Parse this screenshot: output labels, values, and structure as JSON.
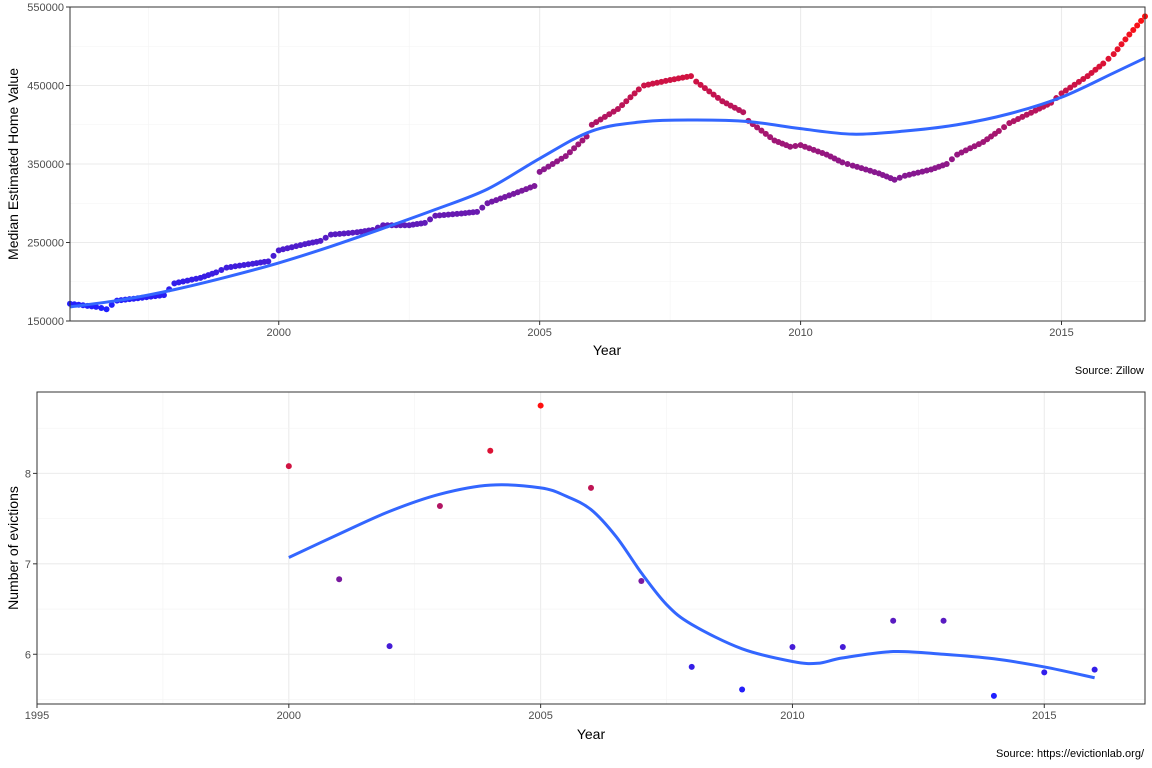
{
  "chart_data": [
    {
      "type": "scatter",
      "xlabel": "Year",
      "ylabel": "Median Estimated Home Value",
      "caption": "Source: Zillow",
      "xlim": [
        1996.0,
        2016.6
      ],
      "ylim": [
        150000,
        550000
      ],
      "x_ticks": [
        2000,
        2005,
        2010,
        2015
      ],
      "y_ticks": [
        150000,
        250000,
        350000,
        450000,
        550000
      ],
      "x_tick_labels": [
        "2000",
        "2005",
        "2010",
        "2015"
      ],
      "y_tick_labels": [
        "150000",
        "250000",
        "350000",
        "450000",
        "550000"
      ],
      "grid": true,
      "point_color_scale": {
        "low": "#1f1fff",
        "high": "#ff1010"
      },
      "points_trend": [
        [
          1996.0,
          172000
        ],
        [
          1996.5,
          168000
        ],
        [
          1996.7,
          165000
        ],
        [
          1996.9,
          176000
        ],
        [
          1997.3,
          179000
        ],
        [
          1997.8,
          183000
        ],
        [
          1998.0,
          198000
        ],
        [
          1998.5,
          205000
        ],
        [
          1998.8,
          212000
        ],
        [
          1999.0,
          218000
        ],
        [
          1999.5,
          223000
        ],
        [
          1999.8,
          226000
        ],
        [
          2000.0,
          240000
        ],
        [
          2000.5,
          248000
        ],
        [
          2000.8,
          252000
        ],
        [
          2001.0,
          260000
        ],
        [
          2001.5,
          263000
        ],
        [
          2001.8,
          266000
        ],
        [
          2002.0,
          272000
        ],
        [
          2002.5,
          272000
        ],
        [
          2002.8,
          275000
        ],
        [
          2003.0,
          284000
        ],
        [
          2003.5,
          287000
        ],
        [
          2003.8,
          289000
        ],
        [
          2004.0,
          300000
        ],
        [
          2004.5,
          312000
        ],
        [
          2004.9,
          322000
        ],
        [
          2005.0,
          340000
        ],
        [
          2005.5,
          360000
        ],
        [
          2005.9,
          385000
        ],
        [
          2006.0,
          400000
        ],
        [
          2006.5,
          420000
        ],
        [
          2006.9,
          445000
        ],
        [
          2007.0,
          450000
        ],
        [
          2007.5,
          457000
        ],
        [
          2007.9,
          462000
        ],
        [
          2008.0,
          455000
        ],
        [
          2008.5,
          430000
        ],
        [
          2008.9,
          416000
        ],
        [
          2009.0,
          405000
        ],
        [
          2009.5,
          380000
        ],
        [
          2009.8,
          372000
        ],
        [
          2010.0,
          374000
        ],
        [
          2010.5,
          362000
        ],
        [
          2010.8,
          352000
        ],
        [
          2011.0,
          348000
        ],
        [
          2011.5,
          338000
        ],
        [
          2011.8,
          330000
        ],
        [
          2012.0,
          335000
        ],
        [
          2012.5,
          343000
        ],
        [
          2012.8,
          350000
        ],
        [
          2013.0,
          362000
        ],
        [
          2013.5,
          378000
        ],
        [
          2013.8,
          392000
        ],
        [
          2014.0,
          402000
        ],
        [
          2014.5,
          418000
        ],
        [
          2014.8,
          428000
        ],
        [
          2015.0,
          440000
        ],
        [
          2015.5,
          462000
        ],
        [
          2015.8,
          478000
        ],
        [
          2016.0,
          490000
        ],
        [
          2016.3,
          515000
        ],
        [
          2016.6,
          538000
        ]
      ],
      "smooth": [
        [
          1996.0,
          168000
        ],
        [
          1997.0,
          177000
        ],
        [
          1998.0,
          190000
        ],
        [
          1999.0,
          206000
        ],
        [
          2000.0,
          224000
        ],
        [
          2001.0,
          245000
        ],
        [
          2002.0,
          268000
        ],
        [
          2003.0,
          292000
        ],
        [
          2004.0,
          318000
        ],
        [
          2005.0,
          357000
        ],
        [
          2006.0,
          392000
        ],
        [
          2007.0,
          404000
        ],
        [
          2008.0,
          406000
        ],
        [
          2009.0,
          404000
        ],
        [
          2010.0,
          395000
        ],
        [
          2011.0,
          388000
        ],
        [
          2012.0,
          392000
        ],
        [
          2013.0,
          400000
        ],
        [
          2014.0,
          414000
        ],
        [
          2015.0,
          435000
        ],
        [
          2016.0,
          466000
        ],
        [
          2016.6,
          485000
        ]
      ]
    },
    {
      "type": "scatter",
      "xlabel": "Year",
      "ylabel": "Number of evictions",
      "caption": "Source: https://evictionlab.org/",
      "xlim": [
        1995,
        2017
      ],
      "ylim": [
        5.45,
        8.9
      ],
      "x_ticks": [
        1995,
        2000,
        2005,
        2010,
        2015
      ],
      "y_ticks": [
        6,
        7,
        8
      ],
      "x_tick_labels": [
        "1995",
        "2000",
        "2005",
        "2010",
        "2015"
      ],
      "y_tick_labels": [
        "6",
        "7",
        "8"
      ],
      "grid": true,
      "point_color_scale": {
        "low": "#1f1fff",
        "high": "#ff1010"
      },
      "points": [
        [
          2000,
          8.08
        ],
        [
          2001,
          6.83
        ],
        [
          2002,
          6.09
        ],
        [
          2003,
          7.64
        ],
        [
          2004,
          8.25
        ],
        [
          2005,
          8.75
        ],
        [
          2006,
          7.84
        ],
        [
          2007,
          6.81
        ],
        [
          2008,
          5.86
        ],
        [
          2009,
          5.61
        ],
        [
          2010,
          6.08
        ],
        [
          2011,
          6.08
        ],
        [
          2012,
          6.37
        ],
        [
          2013,
          6.37
        ],
        [
          2014,
          5.54
        ],
        [
          2015,
          5.8
        ],
        [
          2016,
          5.83
        ]
      ],
      "smooth": [
        [
          2000,
          7.07
        ],
        [
          2001,
          7.33
        ],
        [
          2002,
          7.58
        ],
        [
          2003,
          7.77
        ],
        [
          2004,
          7.87
        ],
        [
          2005,
          7.84
        ],
        [
          2005.5,
          7.75
        ],
        [
          2006,
          7.6
        ],
        [
          2006.5,
          7.3
        ],
        [
          2007,
          6.9
        ],
        [
          2007.5,
          6.55
        ],
        [
          2008,
          6.33
        ],
        [
          2009,
          6.06
        ],
        [
          2010,
          5.92
        ],
        [
          2010.5,
          5.9
        ],
        [
          2011,
          5.96
        ],
        [
          2012,
          6.03
        ],
        [
          2013,
          6.0
        ],
        [
          2014,
          5.95
        ],
        [
          2015,
          5.86
        ],
        [
          2016,
          5.74
        ]
      ]
    }
  ]
}
